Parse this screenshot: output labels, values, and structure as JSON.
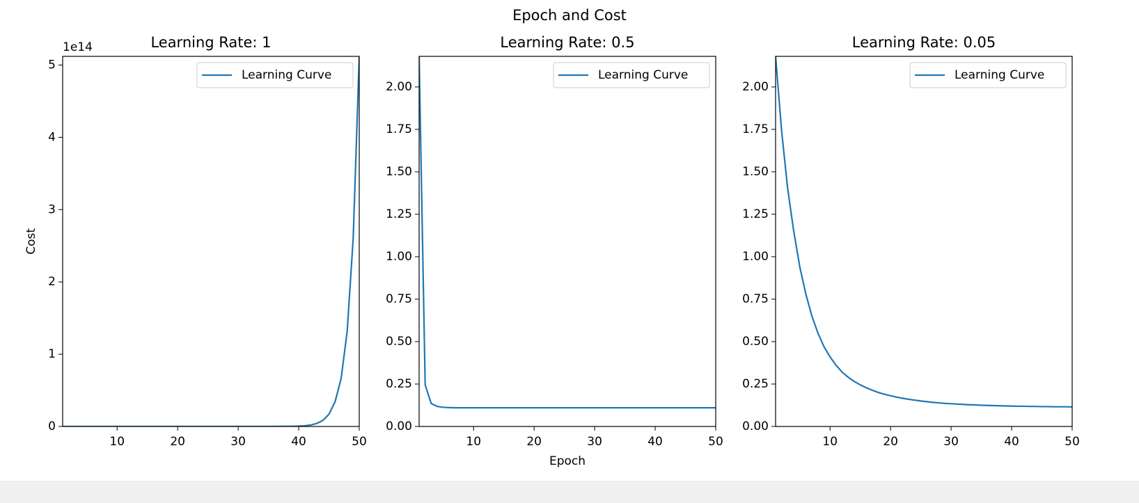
{
  "title": "Epoch and Cost",
  "chart_data": [
    {
      "type": "line",
      "title": "Learning Rate: 1",
      "ylabel": "Cost",
      "y_offset_label": "1e14",
      "x": [
        1,
        2,
        3,
        4,
        5,
        6,
        7,
        8,
        9,
        10,
        11,
        12,
        13,
        14,
        15,
        16,
        17,
        18,
        19,
        20,
        21,
        22,
        23,
        24,
        25,
        26,
        27,
        28,
        29,
        30,
        31,
        32,
        33,
        34,
        35,
        36,
        37,
        38,
        39,
        40,
        41,
        42,
        43,
        44,
        45,
        46,
        47,
        48,
        49,
        50
      ],
      "series": [
        {
          "name": "Learning Curve",
          "color": "#1f77b4",
          "values": [
            0,
            0,
            0,
            0,
            0,
            0,
            0,
            0,
            0,
            0,
            0,
            0,
            0,
            0,
            0,
            0,
            0,
            0,
            0,
            0,
            0,
            0,
            0,
            0,
            0,
            0,
            0,
            0,
            0,
            0,
            0,
            0,
            0,
            0,
            0,
            0,
            0.001,
            0.001,
            0.003,
            0.005,
            0.01,
            0.021,
            0.042,
            0.084,
            0.17,
            0.34,
            0.66,
            1.31,
            2.6,
            5.12
          ]
        }
      ],
      "xlim": [
        1,
        50
      ],
      "ylim": [
        0,
        5.12
      ],
      "xticks": [
        10,
        20,
        30,
        40,
        50
      ],
      "yticks": [
        0,
        1,
        2,
        3,
        4,
        5
      ],
      "legend": "upper right"
    },
    {
      "type": "line",
      "title": "Learning Rate: 0.5",
      "xlabel": "Epoch",
      "x": [
        1,
        2,
        3,
        4,
        5,
        6,
        7,
        8,
        9,
        10,
        11,
        12,
        13,
        14,
        15,
        16,
        17,
        18,
        19,
        20,
        21,
        22,
        23,
        24,
        25,
        26,
        27,
        28,
        29,
        30,
        31,
        32,
        33,
        34,
        35,
        36,
        37,
        38,
        39,
        40,
        41,
        42,
        43,
        44,
        45,
        46,
        47,
        48,
        49,
        50
      ],
      "series": [
        {
          "name": "Learning Curve",
          "color": "#1f77b4",
          "values": [
            2.18,
            0.245,
            0.135,
            0.118,
            0.113,
            0.111,
            0.11,
            0.11,
            0.11,
            0.11,
            0.11,
            0.11,
            0.11,
            0.11,
            0.11,
            0.11,
            0.11,
            0.11,
            0.11,
            0.11,
            0.11,
            0.11,
            0.11,
            0.11,
            0.11,
            0.11,
            0.11,
            0.11,
            0.11,
            0.11,
            0.11,
            0.11,
            0.11,
            0.11,
            0.11,
            0.11,
            0.11,
            0.11,
            0.11,
            0.11,
            0.11,
            0.11,
            0.11,
            0.11,
            0.11,
            0.11,
            0.11,
            0.11,
            0.11,
            0.11
          ]
        }
      ],
      "xlim": [
        1,
        50
      ],
      "ylim": [
        0,
        2.18
      ],
      "xticks": [
        10,
        20,
        30,
        40,
        50
      ],
      "yticks": [
        {
          "value": 0,
          "label": "0.00"
        },
        {
          "value": 0.25,
          "label": "0.25"
        },
        {
          "value": 0.5,
          "label": "0.50"
        },
        {
          "value": 0.75,
          "label": "0.75"
        },
        {
          "value": 1,
          "label": "1.00"
        },
        {
          "value": 1.25,
          "label": "1.25"
        },
        {
          "value": 1.5,
          "label": "1.50"
        },
        {
          "value": 1.75,
          "label": "1.75"
        },
        {
          "value": 2,
          "label": "2.00"
        }
      ],
      "legend": "upper right"
    },
    {
      "type": "line",
      "title": "Learning Rate: 0.05",
      "x": [
        1,
        2,
        3,
        4,
        5,
        6,
        7,
        8,
        9,
        10,
        11,
        12,
        13,
        14,
        15,
        16,
        17,
        18,
        19,
        20,
        21,
        22,
        23,
        24,
        25,
        26,
        27,
        28,
        29,
        30,
        31,
        32,
        33,
        34,
        35,
        36,
        37,
        38,
        39,
        40,
        41,
        42,
        43,
        44,
        45,
        46,
        47,
        48,
        49,
        50
      ],
      "series": [
        {
          "name": "Learning Curve",
          "color": "#1f77b4",
          "values": [
            2.18,
            1.74,
            1.4,
            1.15,
            0.94,
            0.78,
            0.65,
            0.55,
            0.47,
            0.41,
            0.36,
            0.32,
            0.29,
            0.265,
            0.245,
            0.228,
            0.213,
            0.2,
            0.19,
            0.181,
            0.173,
            0.166,
            0.16,
            0.155,
            0.15,
            0.146,
            0.142,
            0.139,
            0.136,
            0.134,
            0.132,
            0.13,
            0.128,
            0.127,
            0.125,
            0.124,
            0.123,
            0.122,
            0.121,
            0.12,
            0.119,
            0.119,
            0.118,
            0.118,
            0.117,
            0.117,
            0.116,
            0.116,
            0.116,
            0.115
          ]
        }
      ],
      "xlim": [
        1,
        50
      ],
      "ylim": [
        0,
        2.18
      ],
      "xticks": [
        10,
        20,
        30,
        40,
        50
      ],
      "yticks": [
        {
          "value": 0,
          "label": "0.00"
        },
        {
          "value": 0.25,
          "label": "0.25"
        },
        {
          "value": 0.5,
          "label": "0.50"
        },
        {
          "value": 0.75,
          "label": "0.75"
        },
        {
          "value": 1,
          "label": "1.00"
        },
        {
          "value": 1.25,
          "label": "1.25"
        },
        {
          "value": 1.5,
          "label": "1.50"
        },
        {
          "value": 1.75,
          "label": "1.75"
        },
        {
          "value": 2,
          "label": "2.00"
        }
      ],
      "legend": "upper right"
    }
  ]
}
